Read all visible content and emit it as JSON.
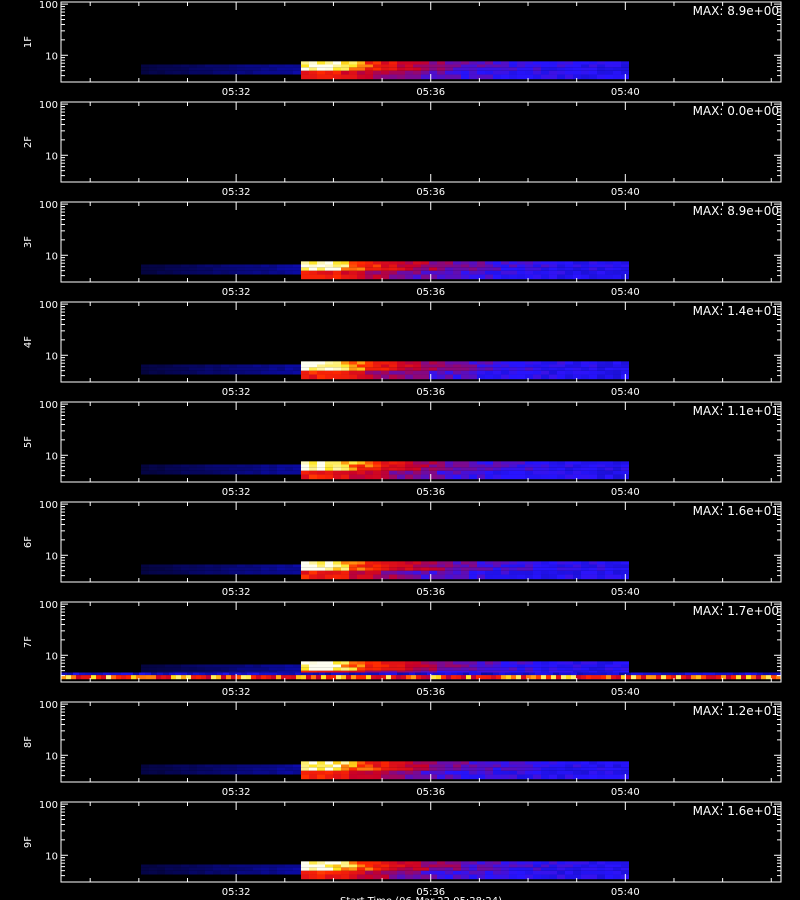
{
  "chart_data": {
    "type": "heatmap",
    "colormap": "black-blue-red-yellow-white",
    "y_scale": "log",
    "ylim": [
      3,
      110
    ],
    "y_ticks": [
      10,
      100
    ],
    "y_tick_labels": [
      "10",
      "100"
    ],
    "x_tick_labels": [
      "05:32",
      "05:36",
      "05:40"
    ],
    "x_tick_minutes": [
      32,
      36,
      40
    ],
    "xlim_minutes": [
      28.4,
      43.2
    ],
    "x_title": "Start Time (06-Mar-22 05:28:24)",
    "panels": [
      {
        "label": "1F",
        "max_text": "MAX: 8.9e+00",
        "max": 8.9,
        "noise_band": false
      },
      {
        "label": "2F",
        "max_text": "MAX: 0.0e+00",
        "max": 0.0,
        "noise_band": false
      },
      {
        "label": "3F",
        "max_text": "MAX: 8.9e+00",
        "max": 8.9,
        "noise_band": false
      },
      {
        "label": "4F",
        "max_text": "MAX: 1.4e+01",
        "max": 14.0,
        "noise_band": false
      },
      {
        "label": "5F",
        "max_text": "MAX: 1.1e+01",
        "max": 11.0,
        "noise_band": false
      },
      {
        "label": "6F",
        "max_text": "MAX: 1.6e+01",
        "max": 16.0,
        "noise_band": false
      },
      {
        "label": "7F",
        "max_text": "MAX: 1.7e+00",
        "max": 1.7,
        "noise_band": true
      },
      {
        "label": "8F",
        "max_text": "MAX: 1.2e+01",
        "max": 12.0,
        "noise_band": false
      },
      {
        "label": "9F",
        "max_text": "MAX: 1.6e+01",
        "max": 16.0,
        "noise_band": false
      }
    ],
    "event": {
      "start_minute": 33.3,
      "peak_minute": 33.9,
      "end_minute": 40.0,
      "energy_low": 4.8,
      "energy_high": 7.0
    }
  }
}
